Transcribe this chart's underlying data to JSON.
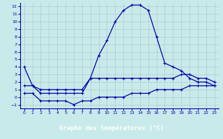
{
  "xlabel": "Graphe des températures (°C)",
  "background_color": "#c8eaea",
  "grid_color": "#aacccc",
  "line_color": "#0000aa",
  "label_bg_color": "#0000aa",
  "label_text_color": "#ffffff",
  "xlim": [
    -0.5,
    23.5
  ],
  "ylim": [
    -1.5,
    12.5
  ],
  "xticks": [
    0,
    1,
    2,
    3,
    4,
    5,
    6,
    7,
    8,
    9,
    10,
    11,
    12,
    13,
    14,
    15,
    16,
    17,
    18,
    19,
    20,
    21,
    22,
    23
  ],
  "yticks": [
    -1,
    0,
    1,
    2,
    3,
    4,
    5,
    6,
    7,
    8,
    9,
    10,
    11,
    12
  ],
  "series_top": [
    4.0,
    1.5,
    0.5,
    0.5,
    0.5,
    0.5,
    0.5,
    0.5,
    2.5,
    5.5,
    7.5,
    10.0,
    11.5,
    12.2,
    12.2,
    11.5,
    8.0,
    4.5,
    4.0,
    3.5,
    2.5,
    2.0,
    2.0,
    1.5
  ],
  "series_mid": [
    1.5,
    1.5,
    1.0,
    1.0,
    1.0,
    1.0,
    1.0,
    1.0,
    2.5,
    2.5,
    2.5,
    2.5,
    2.5,
    2.5,
    2.5,
    2.5,
    2.5,
    2.5,
    2.5,
    3.0,
    3.0,
    2.5,
    2.5,
    2.0
  ],
  "series_bot": [
    0.5,
    0.5,
    -0.5,
    -0.5,
    -0.5,
    -0.5,
    -1.0,
    -0.5,
    -0.5,
    0.0,
    0.0,
    0.0,
    0.0,
    0.5,
    0.5,
    0.5,
    1.0,
    1.0,
    1.0,
    1.0,
    1.5,
    1.5,
    1.5,
    1.5
  ]
}
